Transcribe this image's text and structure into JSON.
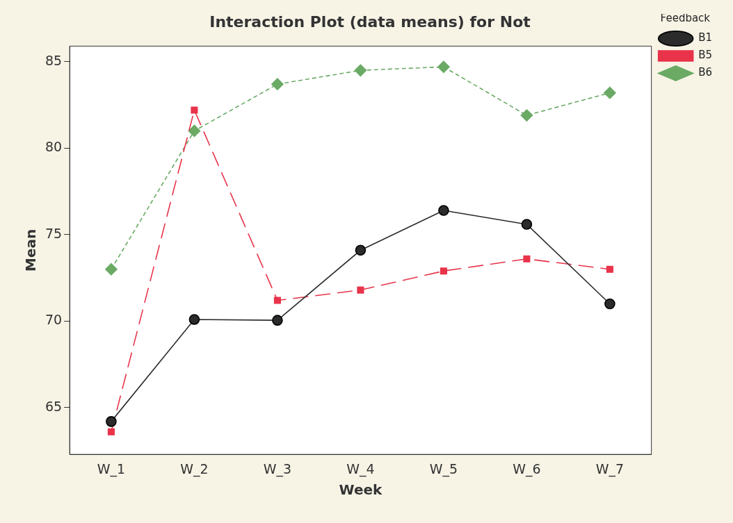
{
  "chart_data": {
    "type": "line",
    "title": "Interaction Plot (data means) for Not",
    "xlabel": "Week",
    "ylabel": "Mean",
    "legend_title": "Feedback",
    "legend": "top right",
    "grid": false,
    "categories": [
      "W_1",
      "W_2",
      "W_3",
      "W_4",
      "W_5",
      "W_6",
      "W_7"
    ],
    "ylim": [
      62.3,
      85.9
    ],
    "yticks": [
      65,
      70,
      75,
      80,
      85
    ],
    "series": [
      {
        "name": "B1",
        "color": "#2b2b2b",
        "marker": "circle",
        "line_style": "solid",
        "values": [
          64.2,
          70.1,
          70.05,
          74.1,
          76.4,
          75.6,
          71.0
        ]
      },
      {
        "name": "B5",
        "color": "#e8334a",
        "marker": "square",
        "line_style": "dashed",
        "values": [
          63.6,
          82.2,
          71.2,
          71.8,
          72.9,
          73.6,
          73.0
        ]
      },
      {
        "name": "B6",
        "color": "#6aaa64",
        "marker": "diamond",
        "line_style": "dotted",
        "values": [
          73.0,
          81.0,
          83.7,
          84.5,
          84.7,
          81.9,
          83.2
        ]
      }
    ]
  }
}
